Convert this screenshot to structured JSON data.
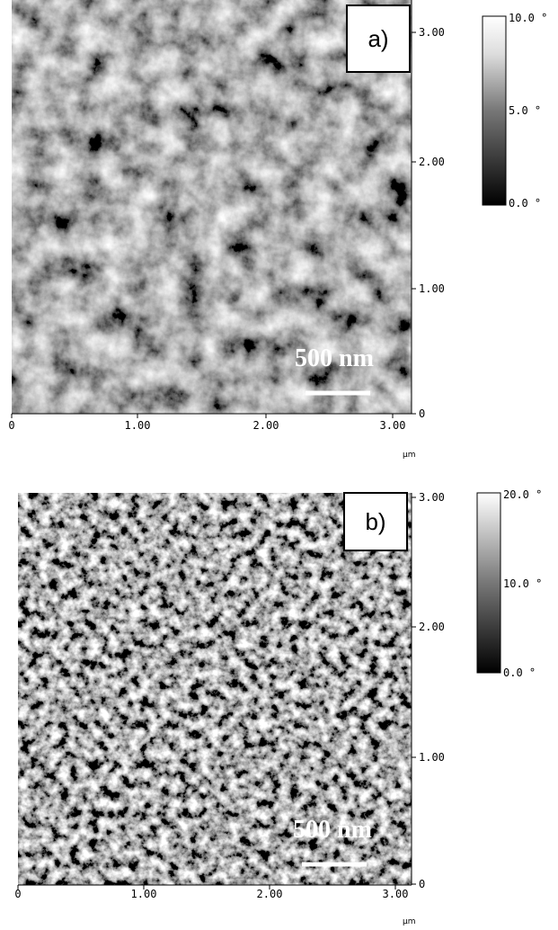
{
  "panels": [
    {
      "label": "a)",
      "scale_bar": "500 nm",
      "x_ticks": [
        "0",
        "1.00",
        "2.00",
        "3.00"
      ],
      "y_ticks": [
        "3.00",
        "2.00",
        "1.00",
        "0"
      ],
      "unit": "µm",
      "colorbar": [
        "10.0 °",
        "5.0 °",
        "0.0 °"
      ]
    },
    {
      "label": "b)",
      "scale_bar": "500 nm",
      "x_ticks": [
        "0",
        "1.00",
        "2.00",
        "3.00"
      ],
      "y_ticks": [
        "3.00",
        "2.00",
        "1.00",
        "0"
      ],
      "unit": "µm",
      "colorbar": [
        "20.0 °",
        "10.0 °",
        "0.0 °"
      ]
    }
  ]
}
